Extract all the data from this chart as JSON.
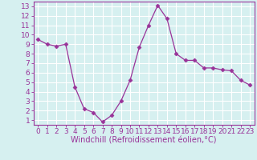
{
  "x": [
    0,
    1,
    2,
    3,
    4,
    5,
    6,
    7,
    8,
    9,
    10,
    11,
    12,
    13,
    14,
    15,
    16,
    17,
    18,
    19,
    20,
    21,
    22,
    23
  ],
  "y": [
    9.5,
    9.0,
    8.8,
    9.0,
    4.5,
    2.2,
    1.8,
    0.8,
    1.5,
    3.0,
    5.2,
    8.7,
    11.0,
    13.1,
    11.7,
    8.0,
    7.3,
    7.3,
    6.5,
    6.5,
    6.3,
    6.2,
    5.2,
    4.7
  ],
  "line_color": "#993399",
  "marker": "D",
  "marker_size": 2.5,
  "bg_color": "#d6f0f0",
  "grid_color": "#ffffff",
  "xlabel": "Windchill (Refroidissement éolien,°C)",
  "xlim": [
    -0.5,
    23.5
  ],
  "ylim": [
    0.5,
    13.5
  ],
  "xticks": [
    0,
    1,
    2,
    3,
    4,
    5,
    6,
    7,
    8,
    9,
    10,
    11,
    12,
    13,
    14,
    15,
    16,
    17,
    18,
    19,
    20,
    21,
    22,
    23
  ],
  "yticks": [
    1,
    2,
    3,
    4,
    5,
    6,
    7,
    8,
    9,
    10,
    11,
    12,
    13
  ],
  "tick_label_color": "#993399",
  "axis_label_color": "#993399",
  "spine_color": "#993399",
  "tick_color": "#993399",
  "font_size_ticks": 6.5,
  "font_size_xlabel": 7.0
}
